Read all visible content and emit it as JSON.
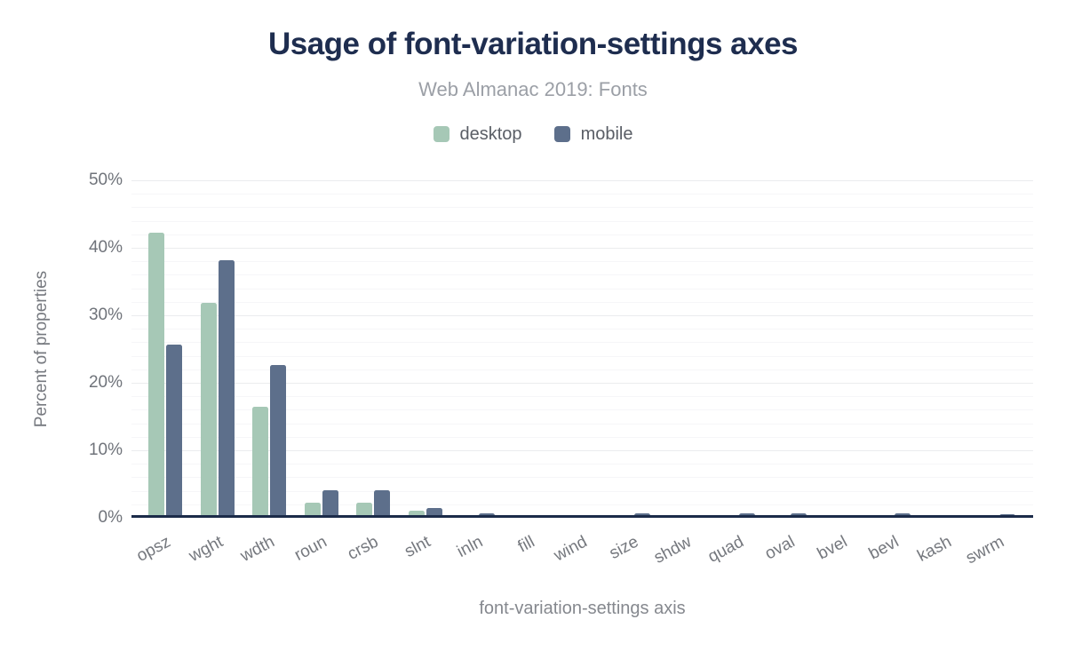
{
  "chart_data": {
    "type": "bar",
    "title": "Usage of font-variation-settings axes",
    "subtitle": "Web Almanac 2019: Fonts",
    "xlabel": "font-variation-settings axis",
    "ylabel": "Percent of properties",
    "categories": [
      "opsz",
      "wght",
      "wdth",
      "roun",
      "crsb",
      "slnt",
      "inln",
      "fill",
      "wind",
      "size",
      "shdw",
      "quad",
      "oval",
      "bvel",
      "bevl",
      "kash",
      "swrm"
    ],
    "series": [
      {
        "name": "desktop",
        "color": "#a6c8b6",
        "values": [
          42.2,
          31.9,
          16.4,
          2.2,
          2.2,
          1.0,
          0.4,
          0.4,
          0.4,
          0.4,
          0.4,
          0.4,
          0.4,
          0.4,
          0.4,
          0.4,
          0.1
        ]
      },
      {
        "name": "mobile",
        "color": "#5d6f8b",
        "values": [
          25.7,
          38.2,
          22.6,
          4.1,
          4.1,
          1.4,
          0.7,
          0.1,
          0.1,
          0.7,
          0.1,
          0.7,
          0.7,
          0.1,
          0.7,
          0.1,
          0.5
        ]
      }
    ],
    "ylim": [
      0,
      50
    ],
    "yticks": [
      "0%",
      "10%",
      "20%",
      "30%",
      "40%",
      "50%"
    ],
    "ytick_values": [
      0,
      10,
      20,
      30,
      40,
      50
    ],
    "grid": {
      "major_step": 10,
      "minor_step": 2,
      "horizontal": true
    },
    "legend_position": "top",
    "bar_orientation": "vertical",
    "xtick_rotation_deg": -28
  },
  "colors": {
    "title": "#1e2d4f",
    "subtitle": "#9b9fa6",
    "axis_line": "#1b2b49",
    "tick_label": "#6f737a",
    "desktop_bar": "#a6c8b6",
    "mobile_bar": "#5d6f8b",
    "background": "#ffffff"
  }
}
